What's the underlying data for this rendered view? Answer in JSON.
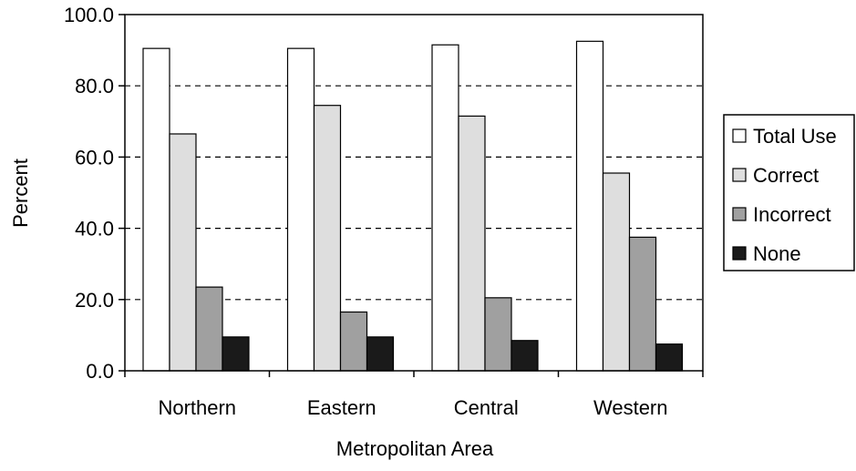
{
  "chart_data": {
    "type": "bar",
    "title": "",
    "xlabel": "Metropolitan Area",
    "ylabel": "Percent",
    "categories": [
      "Northern",
      "Eastern",
      "Central",
      "Western"
    ],
    "ylim": [
      0,
      100
    ],
    "yticks": [
      "0.0",
      "20.0",
      "40.0",
      "60.0",
      "80.0",
      "100.0"
    ],
    "grid": "horizontal dashed",
    "legend_position": "right",
    "series": [
      {
        "name": "Total Use",
        "color": "#ffffff",
        "values": [
          90.5,
          90.5,
          91.5,
          92.5
        ]
      },
      {
        "name": "Correct",
        "color": "#dedede",
        "values": [
          66.5,
          74.5,
          71.5,
          55.5
        ]
      },
      {
        "name": "Incorrect",
        "color": "#a0a0a0",
        "values": [
          23.5,
          16.5,
          20.5,
          37.5
        ]
      },
      {
        "name": "None",
        "color": "#1a1a1a",
        "values": [
          9.5,
          9.5,
          8.5,
          7.5
        ]
      }
    ]
  }
}
